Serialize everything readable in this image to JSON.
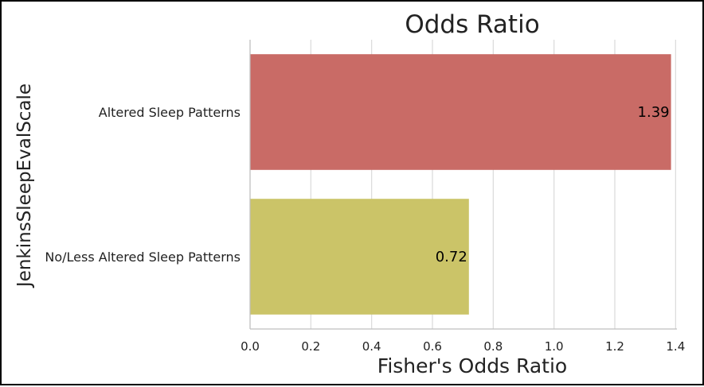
{
  "chart_data": {
    "type": "bar",
    "orientation": "horizontal",
    "title": "Odds Ratio",
    "xlabel": "Fisher's Odds Ratio",
    "ylabel": "JenkinsSleepEvalScale",
    "categories": [
      "Altered Sleep Patterns",
      "No/Less Altered Sleep Patterns"
    ],
    "values": [
      1.385,
      0.72
    ],
    "data_labels": [
      "1.39",
      "0.72"
    ],
    "colors": [
      "#C96B66",
      "#CBC468"
    ],
    "xlim": [
      0,
      1.45
    ],
    "xticks": [
      0.0,
      0.2,
      0.4,
      0.6,
      0.8,
      1.0,
      1.2,
      1.4
    ],
    "xtick_labels": [
      "0.0",
      "0.2",
      "0.4",
      "0.6",
      "0.8",
      "1.0",
      "1.2",
      "1.4"
    ],
    "grid": "vertical",
    "legend": "none"
  }
}
